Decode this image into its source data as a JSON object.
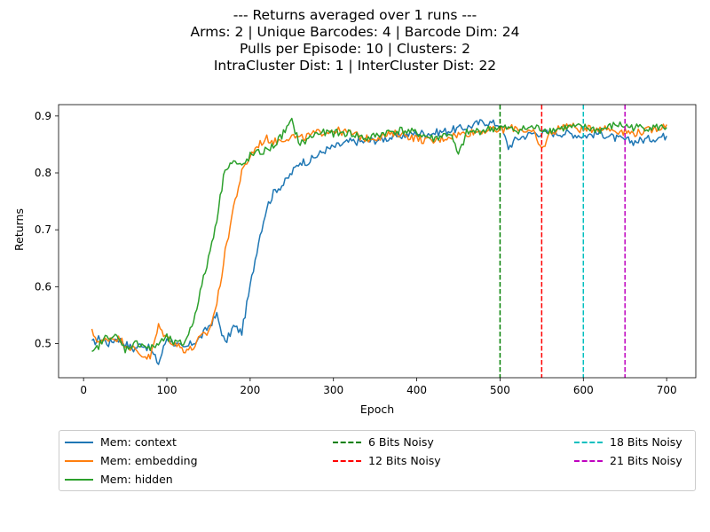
{
  "chart_data": {
    "type": "line",
    "title_lines": [
      "--- Returns averaged over 1 runs ---",
      "Arms: 2 | Unique Barcodes: 4 | Barcode Dim: 24",
      "Pulls per Episode: 10 | Clusters: 2",
      "IntraCluster Dist: 1 | InterCluster Dist: 22"
    ],
    "xlabel": "Epoch",
    "ylabel": "Returns",
    "xlim": [
      -30,
      735
    ],
    "ylim": [
      0.44,
      0.92
    ],
    "xticks": [
      0,
      100,
      200,
      300,
      400,
      500,
      600,
      700
    ],
    "yticks": [
      0.5,
      0.6,
      0.7,
      0.8,
      0.9
    ],
    "grid": false,
    "series": [
      {
        "name": "Mem: context",
        "color": "#1f77b4",
        "x": [
          10,
          20,
          30,
          40,
          50,
          60,
          70,
          80,
          90,
          100,
          110,
          120,
          130,
          140,
          150,
          160,
          170,
          180,
          190,
          200,
          210,
          220,
          230,
          240,
          250,
          260,
          270,
          280,
          290,
          300,
          320,
          340,
          360,
          380,
          400,
          420,
          440,
          460,
          480,
          500,
          510,
          520,
          540,
          560,
          580,
          600,
          620,
          640,
          660,
          680,
          700
        ],
        "y": [
          0.5,
          0.51,
          0.5,
          0.51,
          0.5,
          0.49,
          0.5,
          0.49,
          0.465,
          0.51,
          0.5,
          0.49,
          0.5,
          0.51,
          0.53,
          0.55,
          0.5,
          0.53,
          0.52,
          0.6,
          0.68,
          0.74,
          0.77,
          0.78,
          0.8,
          0.82,
          0.82,
          0.83,
          0.84,
          0.845,
          0.855,
          0.855,
          0.86,
          0.865,
          0.87,
          0.87,
          0.875,
          0.88,
          0.89,
          0.885,
          0.845,
          0.86,
          0.87,
          0.87,
          0.87,
          0.865,
          0.87,
          0.86,
          0.855,
          0.86,
          0.865
        ]
      },
      {
        "name": "Mem: embedding",
        "color": "#ff7f0e",
        "x": [
          10,
          20,
          30,
          40,
          50,
          60,
          70,
          80,
          90,
          100,
          110,
          120,
          130,
          140,
          150,
          160,
          170,
          180,
          190,
          200,
          210,
          220,
          230,
          240,
          250,
          260,
          280,
          300,
          320,
          340,
          360,
          380,
          400,
          420,
          440,
          460,
          480,
          500,
          520,
          540,
          550,
          560,
          580,
          600,
          620,
          640,
          660,
          680,
          700
        ],
        "y": [
          0.52,
          0.5,
          0.51,
          0.51,
          0.5,
          0.49,
          0.48,
          0.475,
          0.53,
          0.51,
          0.5,
          0.49,
          0.49,
          0.51,
          0.52,
          0.57,
          0.66,
          0.74,
          0.8,
          0.83,
          0.85,
          0.86,
          0.855,
          0.86,
          0.865,
          0.86,
          0.87,
          0.875,
          0.87,
          0.86,
          0.865,
          0.87,
          0.86,
          0.855,
          0.865,
          0.87,
          0.875,
          0.875,
          0.88,
          0.87,
          0.84,
          0.87,
          0.885,
          0.875,
          0.88,
          0.875,
          0.87,
          0.875,
          0.885
        ]
      },
      {
        "name": "Mem: hidden",
        "color": "#2ca02c",
        "x": [
          10,
          20,
          30,
          40,
          50,
          60,
          70,
          80,
          90,
          100,
          110,
          120,
          130,
          140,
          150,
          160,
          170,
          180,
          190,
          200,
          210,
          220,
          230,
          240,
          250,
          260,
          280,
          300,
          320,
          340,
          360,
          380,
          400,
          420,
          440,
          450,
          460,
          480,
          500,
          520,
          540,
          560,
          580,
          600,
          620,
          640,
          660,
          680,
          700
        ],
        "y": [
          0.48,
          0.5,
          0.515,
          0.51,
          0.49,
          0.5,
          0.5,
          0.49,
          0.5,
          0.51,
          0.5,
          0.5,
          0.53,
          0.59,
          0.65,
          0.72,
          0.81,
          0.82,
          0.81,
          0.83,
          0.835,
          0.84,
          0.85,
          0.87,
          0.89,
          0.85,
          0.87,
          0.87,
          0.87,
          0.86,
          0.87,
          0.875,
          0.87,
          0.86,
          0.87,
          0.83,
          0.87,
          0.875,
          0.88,
          0.875,
          0.88,
          0.875,
          0.88,
          0.88,
          0.875,
          0.885,
          0.88,
          0.88,
          0.88
        ]
      }
    ],
    "vlines": [
      {
        "name": "6 Bits Noisy",
        "x": 500,
        "color": "#008000"
      },
      {
        "name": "12 Bits Noisy",
        "x": 550,
        "color": "#ff0000"
      },
      {
        "name": "18 Bits Noisy",
        "x": 600,
        "color": "#00bfbf"
      },
      {
        "name": "21 Bits Noisy",
        "x": 650,
        "color": "#bf00bf"
      }
    ],
    "legend_position": "bottom-center"
  }
}
